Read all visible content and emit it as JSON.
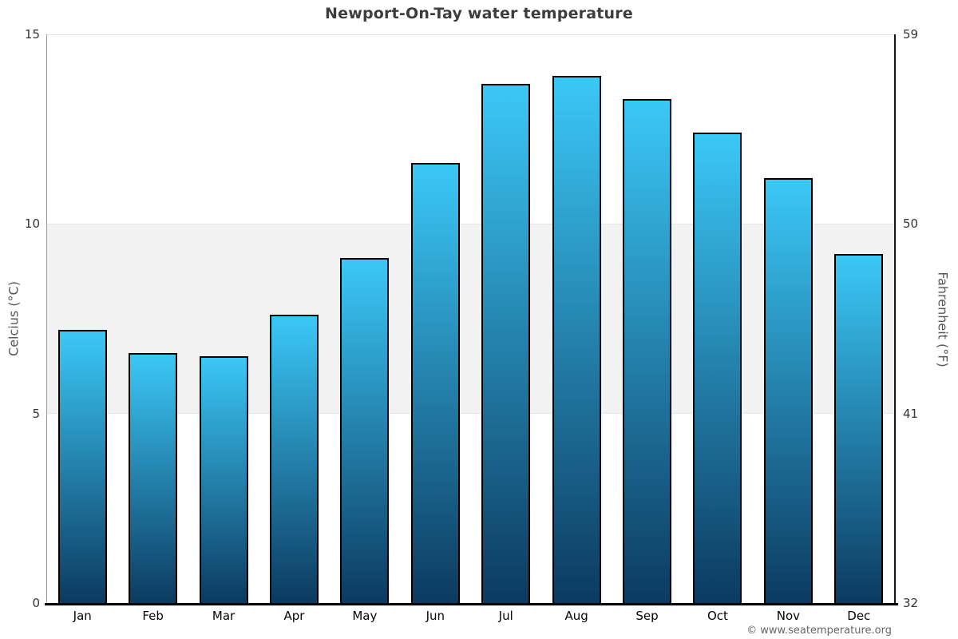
{
  "title": "Newport-On-Tay water temperature",
  "footer": {
    "copyright": "© www.seatemperature.org"
  },
  "chart_data": {
    "type": "bar",
    "title": "Newport-On-Tay water temperature",
    "categories": [
      "Jan",
      "Feb",
      "Mar",
      "Apr",
      "May",
      "Jun",
      "Jul",
      "Aug",
      "Sep",
      "Oct",
      "Nov",
      "Dec"
    ],
    "values": [
      7.2,
      6.6,
      6.5,
      7.6,
      9.1,
      11.6,
      13.7,
      13.9,
      13.3,
      12.4,
      11.2,
      9.2
    ],
    "xlabel": "",
    "ylabel_left": "Celcius (°C)",
    "ylabel_right": "Fahrenheit (°F)",
    "ylim_left": [
      0,
      15
    ],
    "ylim_right": [
      32,
      59
    ],
    "yticks_left": [
      "0",
      "5",
      "10",
      "15"
    ],
    "yticks_right": [
      "32",
      "41",
      "50",
      "59"
    ],
    "shaded_band_celsius": [
      5,
      10
    ],
    "grid": "top boundary line only, shaded band between 5 and 10 °C",
    "legend": "none",
    "colors": {
      "bar_gradient_top": "#3bc8f7",
      "bar_gradient_bottom": "#0c3a60",
      "bar_border": "#000000",
      "band": "#f2f2f2",
      "title": "#3d3d3d",
      "copyright": "#666666"
    }
  }
}
